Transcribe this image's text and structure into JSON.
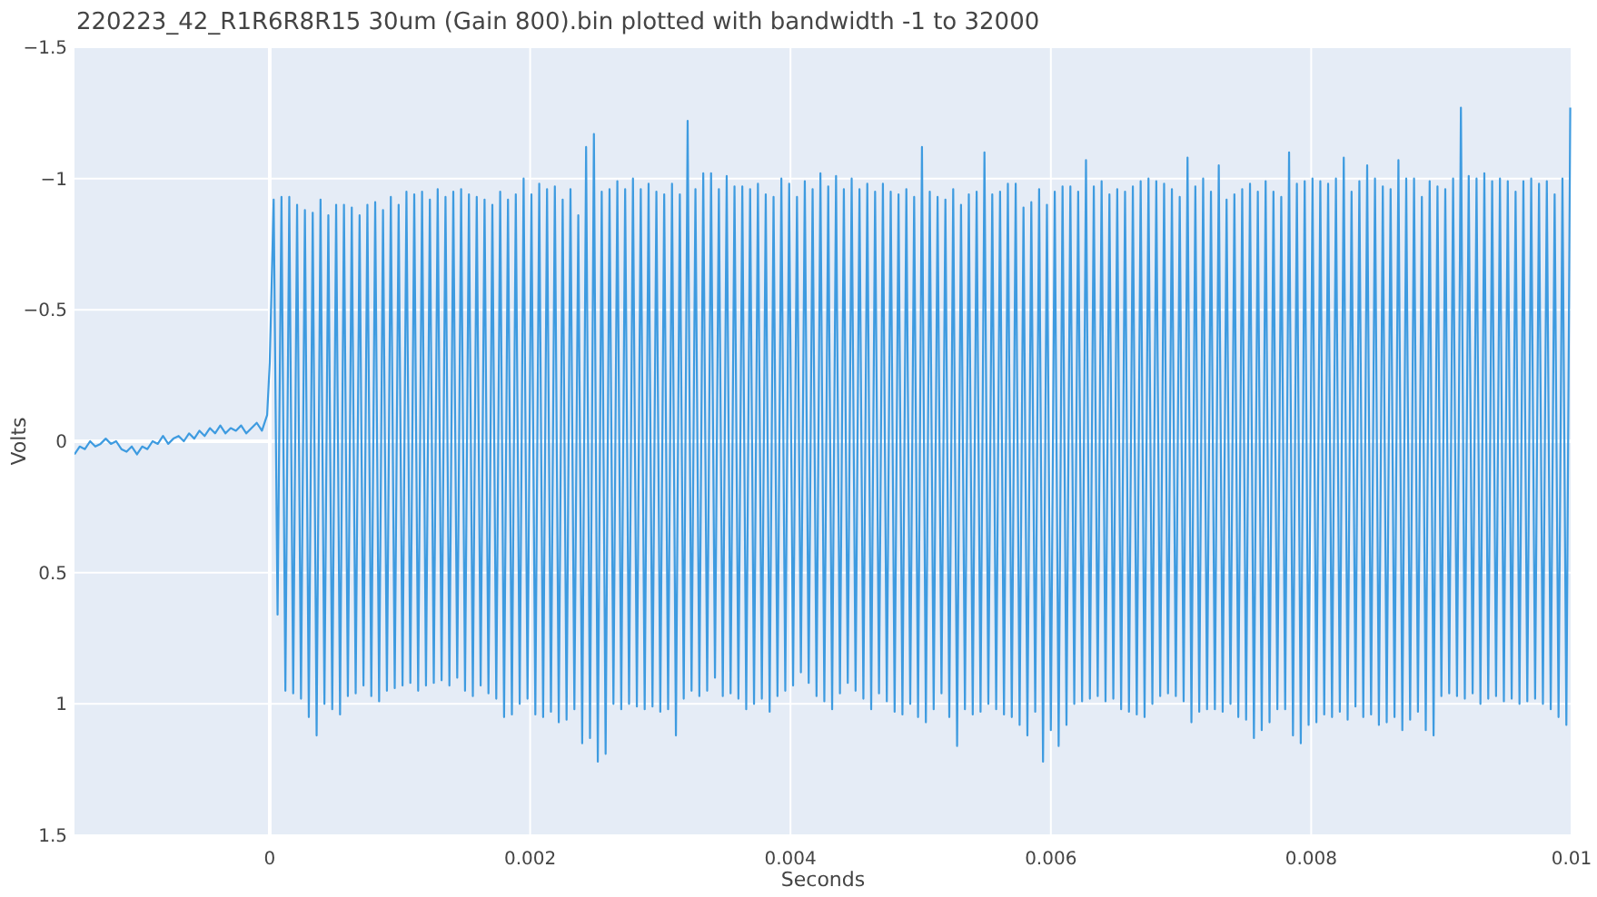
{
  "chart_data": {
    "type": "line",
    "title": "220223_42_R1R6R8R15 30um (Gain 800).bin plotted with bandwidth -1 to 32000",
    "xlabel": "Seconds",
    "ylabel": "Volts",
    "grid": true,
    "xlim": [
      -0.0015,
      0.01
    ],
    "ylim": [
      1.5,
      -1.5
    ],
    "xticks": [
      0,
      0.002,
      0.004,
      0.006,
      0.008,
      0.01
    ],
    "yticks": [
      {
        "value": -1.5,
        "label": "−1.5"
      },
      {
        "value": -1,
        "label": "−1"
      },
      {
        "value": -0.5,
        "label": "−0.5"
      },
      0,
      0.5,
      1,
      1.5
    ],
    "series": [
      {
        "color": "#3e9be0",
        "x": [
          -0.0015,
          -0.00146,
          -0.00142,
          -0.00138,
          -0.00134,
          -0.0013,
          -0.00126,
          -0.00122,
          -0.00118,
          -0.00114,
          -0.0011,
          -0.00106,
          -0.00102,
          -0.00098,
          -0.00094,
          -0.0009,
          -0.00086,
          -0.00082,
          -0.00078,
          -0.00074,
          -0.0007,
          -0.00066,
          -0.00062,
          -0.00058,
          -0.00054,
          -0.0005,
          -0.00046,
          -0.00042,
          -0.00038,
          -0.00034,
          -0.0003,
          -0.00026,
          -0.00022,
          -0.00018,
          -0.00014,
          -0.0001,
          -6e-05,
          -2e-05,
          0,
          3e-05,
          6e-05,
          9e-05,
          0.00012,
          0.00015,
          0.00018,
          0.00021,
          0.00024,
          0.00027,
          0.0003,
          0.00033,
          0.00036,
          0.00039,
          0.00042,
          0.00045,
          0.00048,
          0.00051,
          0.00054,
          0.00057,
          0.0006,
          0.00063,
          0.00066,
          0.00069,
          0.00072,
          0.00075,
          0.00078,
          0.00081,
          0.00084,
          0.00087,
          0.0009,
          0.00093,
          0.00096,
          0.00099,
          0.00102,
          0.00105,
          0.00108,
          0.00111,
          0.00114,
          0.00117,
          0.0012,
          0.00123,
          0.00126,
          0.00129,
          0.00132,
          0.00135,
          0.00138,
          0.00141,
          0.00144,
          0.00147,
          0.0015,
          0.00153,
          0.00156,
          0.00159,
          0.00162,
          0.00165,
          0.00168,
          0.00171,
          0.00174,
          0.00177,
          0.0018,
          0.00183,
          0.00186,
          0.00189,
          0.00192,
          0.00195,
          0.00198,
          0.00201,
          0.00204,
          0.00207,
          0.0021,
          0.00213,
          0.00216,
          0.00219,
          0.00222,
          0.00225,
          0.00228,
          0.00231,
          0.00234,
          0.00237,
          0.0024,
          0.00243,
          0.00246,
          0.00249,
          0.00252,
          0.00255,
          0.00258,
          0.00261,
          0.00264,
          0.00267,
          0.0027,
          0.00273,
          0.00276,
          0.00279,
          0.00282,
          0.00285,
          0.00288,
          0.00291,
          0.00294,
          0.00297,
          0.003,
          0.00303,
          0.00306,
          0.00309,
          0.00312,
          0.00315,
          0.00318,
          0.00321,
          0.00324,
          0.00327,
          0.0033,
          0.00333,
          0.00336,
          0.00339,
          0.00342,
          0.00345,
          0.00348,
          0.00351,
          0.00354,
          0.00357,
          0.0036,
          0.00363,
          0.00366,
          0.00369,
          0.00372,
          0.00375,
          0.00378,
          0.00381,
          0.00384,
          0.00387,
          0.0039,
          0.00393,
          0.00396,
          0.00399,
          0.00402,
          0.00405,
          0.00408,
          0.00411,
          0.00414,
          0.00417,
          0.0042,
          0.00423,
          0.00426,
          0.00429,
          0.00432,
          0.00435,
          0.00438,
          0.00441,
          0.00444,
          0.00447,
          0.0045,
          0.00453,
          0.00456,
          0.00459,
          0.00462,
          0.00465,
          0.00468,
          0.00471,
          0.00474,
          0.00477,
          0.0048,
          0.00483,
          0.00486,
          0.00489,
          0.00492,
          0.00495,
          0.00498,
          0.00501,
          0.00504,
          0.00507,
          0.0051,
          0.00513,
          0.00516,
          0.00519,
          0.00522,
          0.00525,
          0.00528,
          0.00531,
          0.00534,
          0.00537,
          0.0054,
          0.00543,
          0.00546,
          0.00549,
          0.00552,
          0.00555,
          0.00558,
          0.00561,
          0.00564,
          0.00567,
          0.0057,
          0.00573,
          0.00576,
          0.00579,
          0.00582,
          0.00585,
          0.00588,
          0.00591,
          0.00594,
          0.00597,
          0.006,
          0.00603,
          0.00606,
          0.00609,
          0.00612,
          0.00615,
          0.00618,
          0.00621,
          0.00624,
          0.00627,
          0.0063,
          0.00633,
          0.00636,
          0.00639,
          0.00642,
          0.00645,
          0.00648,
          0.00651,
          0.00654,
          0.00657,
          0.0066,
          0.00663,
          0.00666,
          0.00669,
          0.00672,
          0.00675,
          0.00678,
          0.00681,
          0.00684,
          0.00687,
          0.0069,
          0.00693,
          0.00696,
          0.00699,
          0.00702,
          0.00705,
          0.00708,
          0.00711,
          0.00714,
          0.00717,
          0.0072,
          0.00723,
          0.00726,
          0.00729,
          0.00732,
          0.00735,
          0.00738,
          0.00741,
          0.00744,
          0.00747,
          0.0075,
          0.00753,
          0.00756,
          0.00759,
          0.00762,
          0.00765,
          0.00768,
          0.00771,
          0.00774,
          0.00777,
          0.0078,
          0.00783,
          0.00786,
          0.00789,
          0.00792,
          0.00795,
          0.00798,
          0.00801,
          0.00804,
          0.00807,
          0.0081,
          0.00813,
          0.00816,
          0.00819,
          0.00822,
          0.00825,
          0.00828,
          0.00831,
          0.00834,
          0.00837,
          0.0084,
          0.00843,
          0.00846,
          0.00849,
          0.00852,
          0.00855,
          0.00858,
          0.00861,
          0.00864,
          0.00867,
          0.0087,
          0.00873,
          0.00876,
          0.00879,
          0.00882,
          0.00885,
          0.00888,
          0.00891,
          0.00894,
          0.00897,
          0.009,
          0.00903,
          0.00906,
          0.00909,
          0.00912,
          0.00915,
          0.00918,
          0.00921,
          0.00924,
          0.00927,
          0.0093,
          0.00933,
          0.00936,
          0.00939,
          0.00942,
          0.00945,
          0.00948,
          0.00951,
          0.00954,
          0.00957,
          0.0096,
          0.00963,
          0.00966,
          0.00969,
          0.00972,
          0.00975,
          0.00978,
          0.00981,
          0.00984,
          0.00987,
          0.0099,
          0.00993,
          0.00996,
          0.00999
        ],
        "values": [
          0.05,
          0.02,
          0.03,
          0.0,
          0.02,
          0.01,
          -0.01,
          0.01,
          0.0,
          0.03,
          0.04,
          0.02,
          0.05,
          0.02,
          0.03,
          0.0,
          0.01,
          -0.02,
          0.01,
          -0.01,
          -0.02,
          0.0,
          -0.03,
          -0.01,
          -0.04,
          -0.02,
          -0.05,
          -0.03,
          -0.06,
          -0.03,
          -0.05,
          -0.04,
          -0.06,
          -0.03,
          -0.05,
          -0.07,
          -0.04,
          -0.1,
          -0.3,
          -0.92,
          0.66,
          -0.93,
          0.95,
          -0.93,
          0.96,
          -0.9,
          0.98,
          -0.88,
          1.05,
          -0.87,
          1.12,
          -0.92,
          1.0,
          -0.86,
          1.02,
          -0.9,
          1.04,
          -0.9,
          0.97,
          -0.89,
          0.96,
          -0.86,
          0.93,
          -0.9,
          0.97,
          -0.91,
          0.99,
          -0.88,
          0.95,
          -0.93,
          0.94,
          -0.9,
          0.93,
          -0.95,
          0.92,
          -0.94,
          0.95,
          -0.95,
          0.93,
          -0.92,
          0.92,
          -0.96,
          0.91,
          -0.93,
          0.93,
          -0.95,
          0.9,
          -0.96,
          0.95,
          -0.94,
          0.97,
          -0.93,
          0.93,
          -0.92,
          0.96,
          -0.9,
          0.98,
          -0.95,
          1.05,
          -0.92,
          1.04,
          -0.94,
          1.0,
          -1.0,
          0.98,
          -0.94,
          1.04,
          -0.98,
          1.05,
          -0.96,
          1.03,
          -0.97,
          1.07,
          -0.92,
          1.06,
          -0.96,
          1.02,
          -0.86,
          1.15,
          -1.12,
          1.13,
          -1.17,
          1.22,
          -0.95,
          1.19,
          -0.96,
          1.0,
          -0.99,
          1.02,
          -0.96,
          1.0,
          -1.0,
          1.01,
          -0.96,
          1.02,
          -0.98,
          1.01,
          -0.95,
          1.03,
          -0.94,
          1.02,
          -0.98,
          1.12,
          -0.94,
          0.98,
          -1.22,
          0.95,
          -0.96,
          0.97,
          -1.02,
          0.95,
          -1.02,
          0.9,
          -0.96,
          0.97,
          -1.01,
          0.96,
          -0.97,
          0.98,
          -0.97,
          1.02,
          -0.96,
          1.0,
          -0.98,
          0.98,
          -0.94,
          1.03,
          -0.93,
          0.97,
          -1.0,
          0.95,
          -0.98,
          0.93,
          -0.93,
          0.88,
          -0.99,
          0.92,
          -0.96,
          0.97,
          -1.02,
          0.99,
          -0.97,
          1.02,
          -1.01,
          0.96,
          -0.96,
          0.92,
          -1.0,
          0.95,
          -0.96,
          0.98,
          -0.98,
          1.02,
          -0.95,
          0.96,
          -0.98,
          0.99,
          -0.95,
          1.03,
          -0.94,
          1.04,
          -0.96,
          1.0,
          -0.93,
          1.05,
          -1.12,
          1.07,
          -0.95,
          1.02,
          -0.93,
          0.96,
          -0.92,
          1.05,
          -0.96,
          1.16,
          -0.9,
          1.02,
          -0.94,
          1.04,
          -0.95,
          1.03,
          -1.1,
          1.0,
          -0.94,
          1.02,
          -0.95,
          1.04,
          -0.98,
          1.05,
          -0.98,
          1.08,
          -0.89,
          1.12,
          -0.91,
          1.03,
          -0.96,
          1.22,
          -0.9,
          1.1,
          -0.95,
          1.16,
          -0.97,
          1.08,
          -0.97,
          1.0,
          -0.95,
          0.99,
          -1.07,
          0.98,
          -0.97,
          0.97,
          -0.99,
          0.99,
          -0.94,
          0.98,
          -0.96,
          1.02,
          -0.95,
          1.03,
          -0.97,
          1.04,
          -0.99,
          1.05,
          -1.0,
          1.0,
          -0.99,
          0.97,
          -0.98,
          0.96,
          -0.96,
          0.97,
          -0.93,
          0.99,
          -1.08,
          1.07,
          -0.97,
          1.03,
          -1.0,
          1.02,
          -0.95,
          1.02,
          -1.05,
          1.03,
          -0.92,
          1.0,
          -0.94,
          1.05,
          -0.96,
          1.06,
          -0.98,
          1.13,
          -0.95,
          1.1,
          -0.99,
          1.07,
          -0.95,
          1.02,
          -0.93,
          1.02,
          -1.1,
          1.12,
          -0.98,
          1.15,
          -0.99,
          1.08,
          -1.0,
          1.07,
          -0.99,
          1.04,
          -0.98,
          1.05,
          -1.0,
          1.03,
          -1.08,
          1.06,
          -0.95,
          1.01,
          -0.99,
          1.05,
          -1.05,
          1.04,
          -1.0,
          1.08,
          -0.97,
          1.07,
          -0.96,
          1.05,
          -1.07,
          1.1,
          -1.0,
          1.06,
          -1.0,
          1.03,
          -0.93,
          1.1,
          -0.99,
          1.12,
          -0.97,
          0.97,
          -0.96,
          0.96,
          -1.0,
          0.97,
          -1.27,
          0.98,
          -1.01,
          0.96,
          -1.0,
          1.0,
          -1.02,
          0.98,
          -0.99,
          0.97,
          -1.0,
          0.99,
          -0.99,
          0.98,
          -0.95,
          1.0,
          -0.99,
          0.99,
          -1.0,
          0.98,
          -0.98,
          1.0,
          -0.99,
          1.02,
          -0.94,
          1.05,
          -1.0,
          1.08,
          -1.27
        ]
      }
    ]
  }
}
